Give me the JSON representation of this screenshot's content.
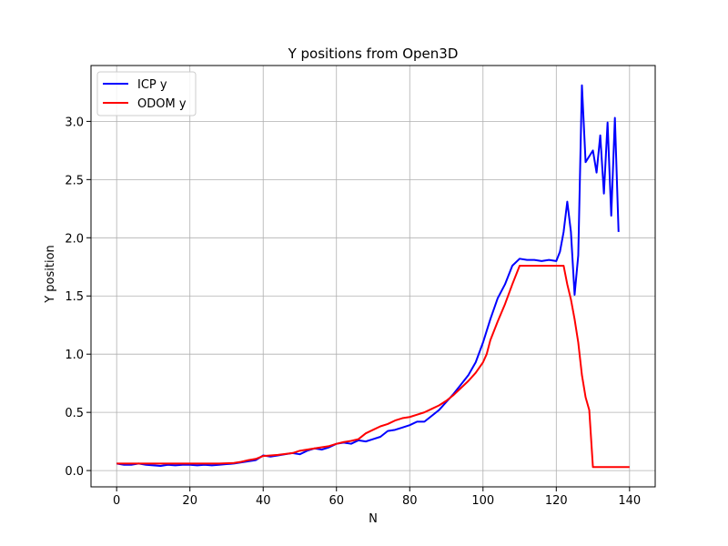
{
  "chart_data": {
    "type": "line",
    "title": "Y positions from Open3D",
    "xlabel": "N",
    "ylabel": "Y position",
    "xlim": [
      -7,
      147
    ],
    "ylim": [
      -0.14,
      3.48
    ],
    "xticks": [
      0,
      20,
      40,
      60,
      80,
      100,
      120,
      140
    ],
    "yticks": [
      0.0,
      0.5,
      1.0,
      1.5,
      2.0,
      2.5,
      3.0
    ],
    "xtick_labels": [
      "0",
      "20",
      "40",
      "60",
      "80",
      "100",
      "120",
      "140"
    ],
    "ytick_labels": [
      "0.0",
      "0.5",
      "1.0",
      "1.5",
      "2.0",
      "2.5",
      "3.0"
    ],
    "grid": true,
    "legend_position": "top-left",
    "series": [
      {
        "name": "ICP y",
        "color": "#0000ff",
        "points": [
          [
            0,
            0.06
          ],
          [
            2,
            0.05
          ],
          [
            4,
            0.05
          ],
          [
            6,
            0.06
          ],
          [
            8,
            0.05
          ],
          [
            10,
            0.045
          ],
          [
            12,
            0.04
          ],
          [
            14,
            0.05
          ],
          [
            16,
            0.045
          ],
          [
            18,
            0.05
          ],
          [
            20,
            0.05
          ],
          [
            22,
            0.045
          ],
          [
            24,
            0.05
          ],
          [
            26,
            0.045
          ],
          [
            28,
            0.05
          ],
          [
            30,
            0.055
          ],
          [
            32,
            0.06
          ],
          [
            34,
            0.07
          ],
          [
            36,
            0.08
          ],
          [
            38,
            0.09
          ],
          [
            40,
            0.13
          ],
          [
            42,
            0.12
          ],
          [
            44,
            0.13
          ],
          [
            46,
            0.14
          ],
          [
            48,
            0.15
          ],
          [
            50,
            0.14
          ],
          [
            52,
            0.17
          ],
          [
            54,
            0.19
          ],
          [
            56,
            0.18
          ],
          [
            58,
            0.2
          ],
          [
            60,
            0.23
          ],
          [
            62,
            0.24
          ],
          [
            64,
            0.23
          ],
          [
            66,
            0.26
          ],
          [
            68,
            0.25
          ],
          [
            70,
            0.27
          ],
          [
            72,
            0.29
          ],
          [
            74,
            0.34
          ],
          [
            76,
            0.35
          ],
          [
            78,
            0.37
          ],
          [
            80,
            0.39
          ],
          [
            82,
            0.42
          ],
          [
            84,
            0.42
          ],
          [
            86,
            0.47
          ],
          [
            88,
            0.52
          ],
          [
            90,
            0.59
          ],
          [
            92,
            0.66
          ],
          [
            94,
            0.74
          ],
          [
            96,
            0.82
          ],
          [
            98,
            0.93
          ],
          [
            100,
            1.1
          ],
          [
            102,
            1.3
          ],
          [
            104,
            1.48
          ],
          [
            106,
            1.6
          ],
          [
            108,
            1.76
          ],
          [
            110,
            1.82
          ],
          [
            112,
            1.81
          ],
          [
            114,
            1.81
          ],
          [
            116,
            1.8
          ],
          [
            118,
            1.81
          ],
          [
            120,
            1.8
          ],
          [
            121,
            1.88
          ],
          [
            122,
            2.05
          ],
          [
            123,
            2.31
          ],
          [
            124,
            2.05
          ],
          [
            125,
            1.51
          ],
          [
            126,
            1.85
          ],
          [
            127,
            3.31
          ],
          [
            128,
            2.65
          ],
          [
            129,
            2.7
          ],
          [
            130,
            2.75
          ],
          [
            131,
            2.56
          ],
          [
            132,
            2.88
          ],
          [
            133,
            2.38
          ],
          [
            134,
            2.99
          ],
          [
            135,
            2.19
          ],
          [
            136,
            3.03
          ],
          [
            137,
            2.05
          ]
        ]
      },
      {
        "name": "ODOM y",
        "color": "#ff0000",
        "points": [
          [
            0,
            0.06
          ],
          [
            4,
            0.06
          ],
          [
            8,
            0.06
          ],
          [
            12,
            0.06
          ],
          [
            16,
            0.06
          ],
          [
            20,
            0.06
          ],
          [
            24,
            0.06
          ],
          [
            28,
            0.06
          ],
          [
            32,
            0.065
          ],
          [
            34,
            0.075
          ],
          [
            36,
            0.09
          ],
          [
            38,
            0.1
          ],
          [
            40,
            0.125
          ],
          [
            44,
            0.135
          ],
          [
            48,
            0.15
          ],
          [
            50,
            0.17
          ],
          [
            54,
            0.19
          ],
          [
            58,
            0.21
          ],
          [
            60,
            0.23
          ],
          [
            62,
            0.245
          ],
          [
            64,
            0.255
          ],
          [
            66,
            0.27
          ],
          [
            68,
            0.32
          ],
          [
            70,
            0.35
          ],
          [
            72,
            0.38
          ],
          [
            74,
            0.4
          ],
          [
            76,
            0.43
          ],
          [
            78,
            0.45
          ],
          [
            80,
            0.46
          ],
          [
            82,
            0.48
          ],
          [
            84,
            0.5
          ],
          [
            86,
            0.53
          ],
          [
            88,
            0.56
          ],
          [
            90,
            0.6
          ],
          [
            92,
            0.65
          ],
          [
            94,
            0.71
          ],
          [
            96,
            0.77
          ],
          [
            98,
            0.84
          ],
          [
            100,
            0.93
          ],
          [
            101,
            1.0
          ],
          [
            102,
            1.12
          ],
          [
            104,
            1.28
          ],
          [
            106,
            1.43
          ],
          [
            108,
            1.6
          ],
          [
            110,
            1.76
          ],
          [
            112,
            1.76
          ],
          [
            116,
            1.76
          ],
          [
            120,
            1.76
          ],
          [
            122,
            1.76
          ],
          [
            123,
            1.6
          ],
          [
            124,
            1.47
          ],
          [
            125,
            1.3
          ],
          [
            126,
            1.1
          ],
          [
            127,
            0.82
          ],
          [
            128,
            0.63
          ],
          [
            129,
            0.52
          ],
          [
            130,
            0.03
          ],
          [
            134,
            0.03
          ],
          [
            138,
            0.03
          ],
          [
            140,
            0.03
          ]
        ]
      }
    ]
  }
}
